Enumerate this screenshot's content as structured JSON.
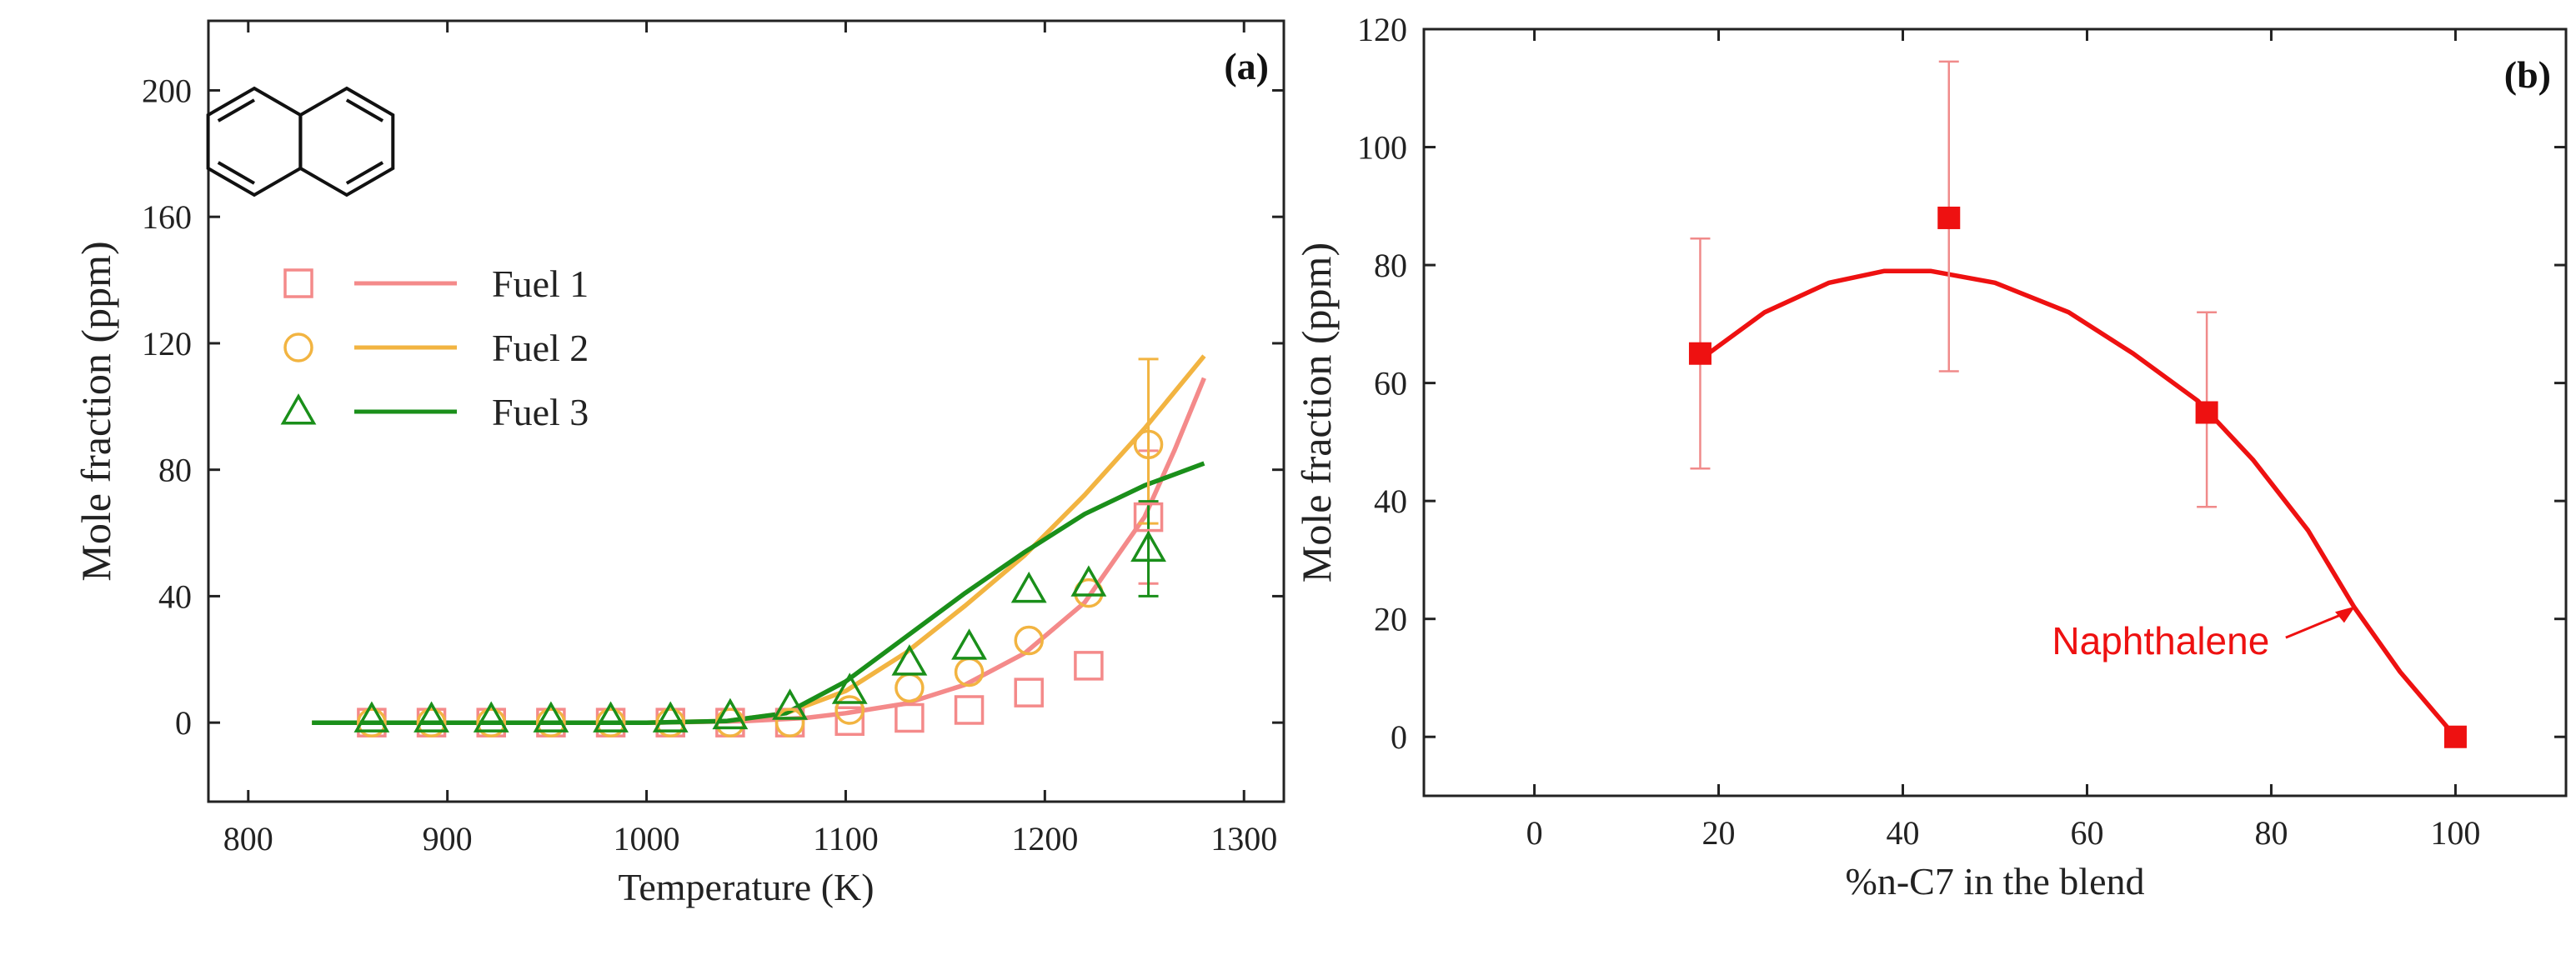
{
  "chart_data": [
    {
      "type": "line",
      "panel_label": "(a)",
      "xlabel": "Temperature (K)",
      "ylabel": "Mole fraction (ppm)",
      "xlim": [
        780,
        1320
      ],
      "ylim": [
        -25,
        222
      ],
      "xticks": [
        800,
        900,
        1000,
        1100,
        1200,
        1300
      ],
      "yticks": [
        0,
        40,
        80,
        120,
        160,
        200
      ],
      "legend": {
        "position": "top-left",
        "entries": [
          "Fuel 1",
          "Fuel 2",
          "Fuel 3"
        ]
      },
      "inset_structure": "naphthalene",
      "series": [
        {
          "name": "Fuel 1",
          "color": "#f48a8a",
          "marker": "square",
          "points": [
            [
              862,
              0
            ],
            [
              892,
              0
            ],
            [
              922,
              0
            ],
            [
              952,
              0
            ],
            [
              982,
              0
            ],
            [
              1012,
              0
            ],
            [
              1042,
              0
            ],
            [
              1072,
              0
            ],
            [
              1102,
              0.5
            ],
            [
              1132,
              1.5
            ],
            [
              1162,
              4
            ],
            [
              1192,
              9.5
            ],
            [
              1222,
              18
            ],
            [
              1252,
              65
            ]
          ],
          "error_bars": [
            {
              "x": 1252,
              "low": 44,
              "high": 86
            }
          ],
          "model": [
            [
              832,
              0
            ],
            [
              900,
              0
            ],
            [
              1000,
              0
            ],
            [
              1050,
              0.5
            ],
            [
              1080,
              1.5
            ],
            [
              1100,
              3
            ],
            [
              1130,
              6
            ],
            [
              1160,
              12
            ],
            [
              1190,
              22
            ],
            [
              1220,
              38
            ],
            [
              1250,
              65
            ],
            [
              1265,
              86
            ],
            [
              1280,
              109
            ]
          ]
        },
        {
          "name": "Fuel 2",
          "color": "#f2b441",
          "marker": "circle",
          "points": [
            [
              862,
              0
            ],
            [
              892,
              0
            ],
            [
              922,
              0
            ],
            [
              952,
              0
            ],
            [
              982,
              0
            ],
            [
              1012,
              0
            ],
            [
              1042,
              0
            ],
            [
              1072,
              0
            ],
            [
              1102,
              4
            ],
            [
              1132,
              11
            ],
            [
              1162,
              16
            ],
            [
              1192,
              26
            ],
            [
              1222,
              41
            ],
            [
              1252,
              88
            ]
          ],
          "error_bars": [
            {
              "x": 1252,
              "low": 63,
              "high": 115
            }
          ],
          "model": [
            [
              832,
              0
            ],
            [
              900,
              0
            ],
            [
              1000,
              0
            ],
            [
              1040,
              0.5
            ],
            [
              1070,
              3
            ],
            [
              1100,
              10
            ],
            [
              1130,
              22
            ],
            [
              1160,
              37
            ],
            [
              1190,
              53
            ],
            [
              1220,
              72
            ],
            [
              1250,
              93
            ],
            [
              1280,
              116
            ]
          ]
        },
        {
          "name": "Fuel 3",
          "color": "#1a8f1a",
          "marker": "triangle",
          "points": [
            [
              862,
              1
            ],
            [
              892,
              1
            ],
            [
              922,
              1
            ],
            [
              952,
              1
            ],
            [
              982,
              1
            ],
            [
              1012,
              1
            ],
            [
              1042,
              2
            ],
            [
              1072,
              5
            ],
            [
              1102,
              10
            ],
            [
              1132,
              19
            ],
            [
              1162,
              24
            ],
            [
              1192,
              42
            ],
            [
              1222,
              44
            ],
            [
              1252,
              55
            ]
          ],
          "error_bars": [
            {
              "x": 1252,
              "low": 40,
              "high": 70
            }
          ],
          "model": [
            [
              832,
              0
            ],
            [
              900,
              0
            ],
            [
              1000,
              0
            ],
            [
              1040,
              0.5
            ],
            [
              1070,
              3
            ],
            [
              1100,
              13
            ],
            [
              1130,
              27
            ],
            [
              1160,
              41
            ],
            [
              1190,
              54
            ],
            [
              1220,
              66
            ],
            [
              1250,
              75
            ],
            [
              1280,
              82
            ]
          ]
        }
      ]
    },
    {
      "type": "scatter",
      "panel_label": "(b)",
      "xlabel": "%n-C7 in the blend",
      "ylabel": "Mole fraction (ppm)",
      "xlim": [
        -12,
        112
      ],
      "ylim": [
        -10,
        120
      ],
      "xticks": [
        0,
        20,
        40,
        60,
        80,
        100
      ],
      "yticks": [
        0,
        20,
        40,
        60,
        80,
        100,
        120
      ],
      "annotation": {
        "text": "Naphthalene",
        "arrow_to": [
          89,
          22
        ]
      },
      "series": [
        {
          "name": "Naphthalene",
          "color": "#ee1111",
          "marker": "square",
          "points": [
            [
              18,
              65
            ],
            [
              45,
              88
            ],
            [
              73,
              55
            ],
            [
              100,
              0
            ]
          ],
          "error_bars": [
            {
              "x": 18,
              "low": 45.5,
              "high": 84.5
            },
            {
              "x": 45,
              "low": 62,
              "high": 114.5
            },
            {
              "x": 73,
              "low": 39,
              "high": 72
            }
          ],
          "fit": [
            [
              18,
              64
            ],
            [
              25,
              72
            ],
            [
              32,
              77
            ],
            [
              38,
              79
            ],
            [
              43,
              79
            ],
            [
              50,
              77
            ],
            [
              58,
              72
            ],
            [
              65,
              65
            ],
            [
              72,
              57
            ],
            [
              78,
              47
            ],
            [
              84,
              35
            ],
            [
              89,
              22
            ],
            [
              94,
              11
            ],
            [
              100,
              0
            ]
          ]
        }
      ]
    }
  ]
}
